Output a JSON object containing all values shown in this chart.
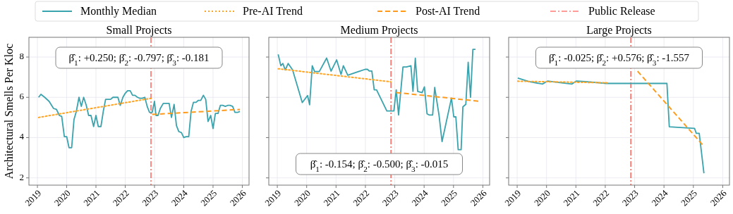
{
  "chart_data": [
    {
      "type": "line",
      "title": "Small Projects",
      "ylabel": "Architectural Smells Per Kloc",
      "legend": "top",
      "grid": true,
      "xlim": [
        2018.71,
        2026.23
      ],
      "ylim": [
        1.64,
        8.98
      ],
      "xticks": [
        2019,
        2020,
        2021,
        2022,
        2023,
        2024,
        2025,
        2026
      ],
      "yticks": [
        2,
        4,
        6,
        8
      ],
      "annotations": [
        "β̂$_{1}$: +0.250; β̂$_{2}$: -0.797; β̂$_{3}$: -0.181"
      ],
      "ref_lines": [
        {
          "axis": "x",
          "value": 2022.88,
          "label": "Public Release",
          "color": "#ff3b30",
          "line_style": "dashdot"
        }
      ],
      "series": [
        {
          "name": "Monthly Median",
          "color": "#3aa3ad",
          "line_style": "solid",
          "x": [
            2019.04,
            2019.12,
            2019.25,
            2019.4,
            2019.55,
            2019.65,
            2019.75,
            2019.83,
            2019.92,
            2020.0,
            2020.08,
            2020.17,
            2020.25,
            2020.33,
            2020.42,
            2020.5,
            2020.58,
            2020.67,
            2020.75,
            2020.83,
            2020.92,
            2021.0,
            2021.08,
            2021.17,
            2021.25,
            2021.33,
            2021.42,
            2021.5,
            2021.58,
            2021.67,
            2021.75,
            2021.83,
            2021.92,
            2022.0,
            2022.08,
            2022.17,
            2022.25,
            2022.33,
            2022.42,
            2022.5,
            2022.58,
            2022.67,
            2022.75,
            2022.83,
            2022.92,
            2023.0,
            2023.05,
            2023.12,
            2023.2,
            2023.3,
            2023.42,
            2023.5,
            2023.58,
            2023.67,
            2023.75,
            2023.83,
            2023.92,
            2024.0,
            2024.08,
            2024.17,
            2024.25,
            2024.33,
            2024.42,
            2024.5,
            2024.58,
            2024.67,
            2024.75,
            2024.83,
            2024.92,
            2025.0,
            2025.08,
            2025.17,
            2025.25,
            2025.33,
            2025.42,
            2025.5,
            2025.58,
            2025.67,
            2025.75,
            2025.83,
            2025.92
          ],
          "values": [
            6.0,
            6.15,
            6.0,
            5.8,
            5.45,
            5.4,
            5.1,
            5.05,
            4.05,
            4.05,
            3.5,
            3.5,
            4.9,
            5.3,
            6.0,
            5.55,
            6.0,
            5.6,
            5.1,
            5.1,
            4.55,
            5.1,
            4.55,
            4.55,
            5.3,
            5.9,
            5.9,
            5.9,
            6.0,
            6.0,
            6.0,
            5.6,
            6.0,
            6.2,
            6.33,
            6.33,
            6.1,
            6.1,
            6.0,
            5.95,
            5.95,
            6.0,
            5.55,
            5.25,
            5.25,
            5.8,
            5.1,
            5.1,
            5.45,
            5.7,
            5.7,
            5.7,
            5.0,
            5.65,
            4.6,
            4.3,
            4.25,
            4.0,
            4.05,
            4.05,
            5.3,
            5.75,
            5.75,
            5.85,
            5.85,
            6.1,
            5.9,
            4.8,
            5.1,
            4.45,
            5.2,
            5.2,
            5.6,
            5.6,
            5.55,
            5.6,
            5.6,
            5.55,
            5.25,
            5.25,
            5.3
          ]
        },
        {
          "name": "Pre-AI Trend",
          "color": "#ffa424",
          "line_style": "dotted",
          "x": [
            2019.04,
            2022.88
          ],
          "values": [
            5.0,
            5.95
          ]
        },
        {
          "name": "Post-AI Trend",
          "color": "#ff9a1a",
          "line_style": "dashed",
          "x": [
            2022.92,
            2025.92
          ],
          "values": [
            5.15,
            5.4
          ]
        }
      ]
    },
    {
      "type": "line",
      "title": "Medium Projects",
      "tick_labels": "x",
      "grid": true,
      "xlim": [
        2018.71,
        2026.23
      ],
      "ylim": [
        1.64,
        8.98
      ],
      "xticks": [
        2019,
        2020,
        2021,
        2022,
        2023,
        2024,
        2025,
        2026
      ],
      "yticks": [
        2,
        4,
        6,
        8
      ],
      "annotations": [
        "β̂$_{1}$: -0.154; β̂$_{2}$: -0.500; β̂$_{3}$: -0.015"
      ],
      "ref_lines": [
        {
          "axis": "x",
          "value": 2022.87,
          "color": "#ff3b30",
          "line_style": "dashdot"
        }
      ],
      "series": [
        {
          "color": "#3aa3ad",
          "line_style": "solid",
          "x": [
            2019.03,
            2019.12,
            2019.19,
            2019.27,
            2019.37,
            2019.52,
            2019.85,
            2020.03,
            2020.1,
            2020.19,
            2020.27,
            2020.43,
            2020.68,
            2020.83,
            2021.02,
            2021.17,
            2021.25,
            2021.4,
            2021.99,
            2022.07,
            2022.13,
            2022.22,
            2022.3,
            2022.38,
            2022.73,
            2022.97,
            2023.05,
            2023.13,
            2023.28,
            2023.4,
            2023.55,
            2023.62,
            2023.7,
            2023.78,
            2023.93,
            2024.01,
            2024.1,
            2024.18,
            2024.29,
            2024.36,
            2024.51,
            2024.61,
            2024.93,
            2025.01,
            2025.08,
            2025.16,
            2025.26,
            2025.32,
            2025.42,
            2025.5,
            2025.58,
            2025.66,
            2025.75
          ],
          "values": [
            8.13,
            7.57,
            7.68,
            7.36,
            7.68,
            7.36,
            5.74,
            6.09,
            5.63,
            7.57,
            7.28,
            7.28,
            7.95,
            7.3,
            7.86,
            7.14,
            7.57,
            7.1,
            7.39,
            7.39,
            7.31,
            7.31,
            6.37,
            6.37,
            5.32,
            5.32,
            6.37,
            5.12,
            7.51,
            7.51,
            7.57,
            6.29,
            7.94,
            6.29,
            6.23,
            6.52,
            5.18,
            5.12,
            5.12,
            6.49,
            5.09,
            3.8,
            5.96,
            5.03,
            5.03,
            3.4,
            3.4,
            5.53,
            5.65,
            7.74,
            6.0,
            8.38,
            8.38
          ]
        },
        {
          "color": "#ffa424",
          "line_style": "dotted",
          "x": [
            2019.03,
            2022.87
          ],
          "values": [
            7.42,
            6.77
          ]
        },
        {
          "color": "#ff9a1a",
          "line_style": "dashed",
          "x": [
            2023.05,
            2025.9
          ],
          "values": [
            6.24,
            5.8
          ]
        }
      ]
    },
    {
      "type": "line",
      "title": "Large Projects",
      "tick_labels": "x",
      "grid": true,
      "xlim": [
        2018.71,
        2026.23
      ],
      "ylim": [
        1.64,
        8.98
      ],
      "xticks": [
        2019,
        2020,
        2021,
        2022,
        2023,
        2024,
        2025,
        2026
      ],
      "yticks": [
        2,
        4,
        6,
        8
      ],
      "annotations": [
        "β̂$_{1}$: -0.025; β̂$_{2}$: +0.576; β̂$_{3}$: -1.557"
      ],
      "ref_lines": [
        {
          "axis": "x",
          "value": 2022.87,
          "color": "#ff3b30",
          "line_style": "dashdot"
        }
      ],
      "series": [
        {
          "color": "#3aa3ad",
          "line_style": "solid",
          "x": [
            2019.02,
            2019.4,
            2019.86,
            2020.04,
            2020.36,
            2020.86,
            2021.02,
            2021.32,
            2022.04,
            2023.08,
            2024.1,
            2024.18,
            2025.04,
            2025.1,
            2025.2,
            2025.36
          ],
          "values": [
            6.96,
            6.78,
            6.66,
            6.81,
            6.75,
            6.66,
            6.81,
            6.78,
            6.69,
            6.69,
            6.69,
            4.54,
            4.46,
            4.21,
            4.21,
            2.23
          ]
        },
        {
          "color": "#ffa424",
          "line_style": "dotted",
          "x": [
            2019.02,
            2022.1
          ],
          "values": [
            6.8,
            6.72
          ]
        },
        {
          "color": "#ff9a1a",
          "line_style": "dashed",
          "x": [
            2023.1,
            2025.36
          ],
          "values": [
            7.3,
            3.57
          ]
        }
      ]
    }
  ]
}
